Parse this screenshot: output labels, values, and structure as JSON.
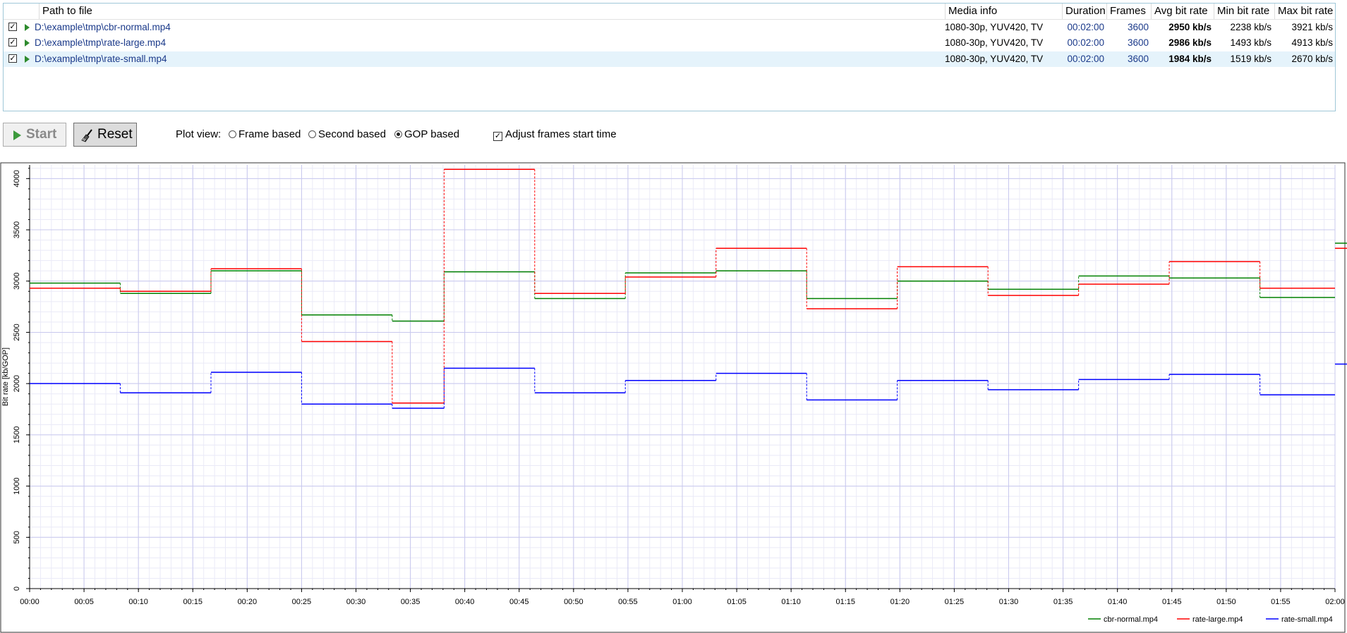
{
  "table": {
    "headers": {
      "path": "Path to file",
      "media": "Media info",
      "duration": "Duration",
      "frames": "Frames",
      "avg": "Avg bit rate",
      "min": "Min bit rate",
      "max": "Max bit rate"
    },
    "rows": [
      {
        "path": "D:\\example\\tmp\\cbr-normal.mp4",
        "media": "1080-30p, YUV420, TV",
        "duration": "00:02:00",
        "frames": "3600",
        "avg": "2950 kb/s",
        "min": "2238 kb/s",
        "max": "3921 kb/s",
        "checked": true
      },
      {
        "path": "D:\\example\\tmp\\rate-large.mp4",
        "media": "1080-30p, YUV420, TV",
        "duration": "00:02:00",
        "frames": "3600",
        "avg": "2986 kb/s",
        "min": "1493 kb/s",
        "max": "4913 kb/s",
        "checked": true
      },
      {
        "path": "D:\\example\\tmp\\rate-small.mp4",
        "media": "1080-30p, YUV420, TV",
        "duration": "00:02:00",
        "frames": "3600",
        "avg": "1984 kb/s",
        "min": "1519 kb/s",
        "max": "2670 kb/s",
        "checked": true,
        "selected": true
      }
    ]
  },
  "toolbar": {
    "start_label": "Start",
    "reset_label": "Reset",
    "plot_view_label": "Plot view:",
    "options": [
      {
        "label": "Frame based",
        "selected": false
      },
      {
        "label": "Second based",
        "selected": false
      },
      {
        "label": "GOP based",
        "selected": true
      }
    ],
    "adjust_label": "Adjust frames start time",
    "adjust_checked": true
  },
  "chart_data": {
    "type": "line",
    "step": true,
    "ylabel": "Bit rate [kb/GOP]",
    "xlabel": "",
    "ylim": [
      0,
      4000
    ],
    "xlim": [
      0,
      120
    ],
    "yticks": [
      "0",
      "500",
      "1000",
      "1500",
      "2000",
      "2500",
      "3000",
      "3500",
      "4000"
    ],
    "xticks": [
      "00:00",
      "00:05",
      "00:10",
      "00:15",
      "00:20",
      "00:25",
      "00:30",
      "00:35",
      "00:40",
      "00:45",
      "00:50",
      "00:55",
      "01:00",
      "01:05",
      "01:10",
      "01:15",
      "01:20",
      "01:25",
      "01:30",
      "01:35",
      "01:40",
      "01:45",
      "01:50",
      "01:55",
      "02:00"
    ],
    "grid": true,
    "legend_position": "bottom-right",
    "series": [
      {
        "name": "cbr-normal.mp4",
        "color": "#008000",
        "x": [
          0,
          8.33,
          16.67,
          25,
          33.33,
          38.1,
          46.43,
          54.76,
          63.1,
          71.43,
          79.76,
          88.1,
          96.43,
          104.76,
          113.1,
          121.43
        ],
        "values": [
          2980,
          2880,
          3100,
          2670,
          2610,
          3090,
          2830,
          3080,
          3100,
          2830,
          3000,
          2920,
          3050,
          3030,
          2840,
          3370
        ]
      },
      {
        "name": "rate-large.mp4",
        "color": "#ff0000",
        "x": [
          0,
          8.33,
          16.67,
          25,
          33.33,
          38.1,
          46.43,
          54.76,
          63.1,
          71.43,
          79.76,
          88.1,
          96.43,
          104.76,
          113.1,
          121.43
        ],
        "values": [
          2930,
          2900,
          3120,
          2410,
          1810,
          4090,
          2880,
          3040,
          3320,
          2730,
          3140,
          2860,
          2970,
          3190,
          2930,
          3320
        ]
      },
      {
        "name": "rate-small.mp4",
        "color": "#0000ff",
        "x": [
          0,
          8.33,
          16.67,
          25,
          33.33,
          38.1,
          46.43,
          54.76,
          63.1,
          71.43,
          79.76,
          88.1,
          96.43,
          104.76,
          113.1,
          121.43
        ],
        "values": [
          2000,
          1910,
          2110,
          1800,
          1760,
          2150,
          1910,
          2030,
          2100,
          1840,
          2030,
          1940,
          2040,
          2090,
          1890,
          2190
        ]
      }
    ]
  }
}
